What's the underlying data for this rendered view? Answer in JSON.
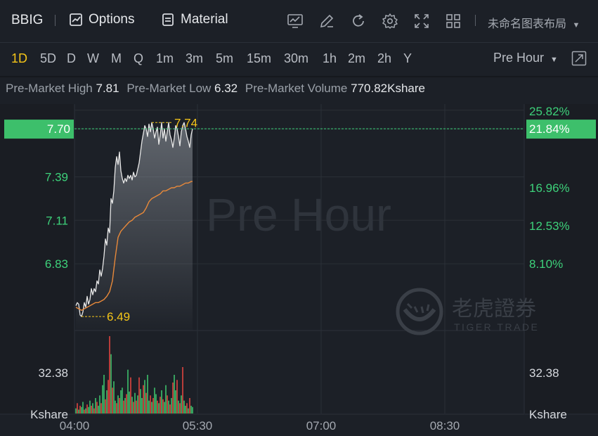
{
  "toolbar": {
    "symbol": "BBIG",
    "options_label": "Options",
    "material_label": "Material",
    "layout_name": "未命名图表布局"
  },
  "periods": [
    "1D",
    "5D",
    "D",
    "W",
    "M",
    "Q",
    "1m",
    "3m",
    "5m",
    "15m",
    "30m",
    "1h",
    "2m",
    "2h",
    "Y"
  ],
  "active_period": "1D",
  "session_label": "Pre Hour",
  "info": {
    "high_label": "Pre-Market High",
    "high_value": "7.81",
    "low_label": "Pre-Market Low",
    "low_value": "6.32",
    "volume_label": "Pre-Market Volume",
    "volume_value": "770.82Kshare"
  },
  "watermark": {
    "session": "Pre Hour",
    "brand_cn": "老虎證券",
    "brand_en": "TIGER TRADE"
  },
  "chart_data": {
    "type": "line",
    "title": "",
    "x_ticks": [
      "04:00",
      "05:30",
      "07:00",
      "08:30"
    ],
    "price_axis": {
      "ylim": [
        6.4,
        7.85
      ],
      "ticks": [
        "7.70",
        "7.39",
        "7.11",
        "6.83"
      ]
    },
    "pct_axis": {
      "ticks": [
        "25.82%",
        "21.84%",
        "16.96%",
        "12.53%",
        "8.10%"
      ]
    },
    "current_price": "7.70",
    "current_pct": "21.84%",
    "high_marker": "7.74",
    "low_marker": "6.49",
    "volume_axis": {
      "ticks_left": [
        "32.38",
        "Kshare"
      ],
      "ticks_right": [
        "32.38",
        "Kshare"
      ],
      "max": 60
    },
    "series": [
      {
        "key": "price",
        "color": "#e8e8e8",
        "x": [
          0,
          1,
          2,
          3,
          4,
          5,
          6,
          7,
          8,
          9,
          10,
          11,
          12,
          13,
          14,
          15,
          16,
          17,
          18,
          19,
          20,
          21,
          22,
          23,
          24,
          25,
          26,
          27,
          28,
          29,
          30,
          31,
          32,
          33,
          34,
          35,
          36,
          37,
          38,
          39,
          40,
          41,
          42,
          43,
          44,
          45,
          46,
          47,
          48,
          49,
          50,
          51,
          52,
          53,
          54,
          55,
          56,
          57,
          58,
          59,
          60,
          61,
          62,
          63,
          64,
          65,
          66,
          67,
          68,
          69,
          70,
          71,
          72,
          73,
          74,
          75,
          76,
          77,
          78,
          79,
          80,
          81,
          82,
          83
        ],
        "values": [
          6.56,
          6.58,
          6.57,
          6.5,
          6.49,
          6.52,
          6.58,
          6.55,
          6.62,
          6.57,
          6.6,
          6.67,
          6.63,
          6.67,
          6.65,
          6.72,
          6.7,
          6.79,
          6.75,
          6.8,
          6.88,
          6.99,
          6.95,
          7.06,
          7.03,
          7.25,
          7.22,
          7.3,
          7.45,
          7.52,
          7.47,
          7.55,
          7.43,
          7.38,
          7.35,
          7.38,
          7.36,
          7.4,
          7.38,
          7.4,
          7.37,
          7.42,
          7.39,
          7.4,
          7.44,
          7.48,
          7.55,
          7.62,
          7.67,
          7.72,
          7.7,
          7.65,
          7.73,
          7.68,
          7.74,
          7.7,
          7.64,
          7.68,
          7.71,
          7.6,
          7.66,
          7.74,
          7.64,
          7.7,
          7.62,
          7.68,
          7.74,
          7.66,
          7.63,
          7.58,
          7.64,
          7.72,
          7.7,
          7.65,
          7.59,
          7.68,
          7.72,
          7.74,
          7.7,
          7.65,
          7.62,
          7.58,
          7.66,
          7.7
        ]
      },
      {
        "key": "avg",
        "color": "#e8893a",
        "x": [
          0,
          2,
          4,
          6,
          8,
          10,
          12,
          14,
          16,
          18,
          20,
          22,
          24,
          26,
          28,
          30,
          32,
          34,
          36,
          38,
          40,
          42,
          44,
          46,
          48,
          50,
          52,
          54,
          56,
          58,
          60,
          62,
          64,
          66,
          68,
          70,
          72,
          74,
          76,
          78,
          80,
          82,
          83
        ],
        "values": [
          6.55,
          6.54,
          6.53,
          6.54,
          6.55,
          6.56,
          6.57,
          6.58,
          6.58,
          6.59,
          6.6,
          6.62,
          6.65,
          6.72,
          6.87,
          7.0,
          7.04,
          7.06,
          7.08,
          7.1,
          7.11,
          7.13,
          7.14,
          7.15,
          7.16,
          7.19,
          7.23,
          7.25,
          7.26,
          7.27,
          7.28,
          7.3,
          7.3,
          7.31,
          7.32,
          7.32,
          7.33,
          7.33,
          7.34,
          7.35,
          7.35,
          7.36,
          7.36
        ]
      }
    ],
    "volume": [
      4,
      8,
      3,
      6,
      5,
      9,
      3,
      4,
      7,
      5,
      10,
      6,
      8,
      4,
      12,
      9,
      6,
      14,
      8,
      22,
      30,
      11,
      18,
      26,
      60,
      46,
      20,
      25,
      10,
      8,
      14,
      12,
      18,
      20,
      10,
      12,
      15,
      34,
      17,
      28,
      13,
      9,
      16,
      10,
      14,
      28,
      19,
      12,
      22,
      26,
      16,
      30,
      10,
      14,
      9,
      12,
      20,
      15,
      10,
      8,
      13,
      18,
      11,
      9,
      22,
      14,
      10,
      7,
      12,
      24,
      30,
      18,
      26,
      10,
      8,
      14,
      36,
      10,
      6,
      8,
      4,
      12,
      6,
      5
    ],
    "volume_colors": [
      "g",
      "r",
      "g",
      "r",
      "g",
      "g",
      "r",
      "g",
      "r",
      "g",
      "g",
      "r",
      "g",
      "r",
      "g",
      "r",
      "g",
      "g",
      "r",
      "g",
      "g",
      "r",
      "g",
      "r",
      "r",
      "g",
      "r",
      "g",
      "g",
      "r",
      "g",
      "r",
      "g",
      "g",
      "r",
      "g",
      "r",
      "g",
      "g",
      "r",
      "g",
      "r",
      "g",
      "r",
      "g",
      "r",
      "g",
      "g",
      "r",
      "g",
      "r",
      "g",
      "g",
      "r",
      "g",
      "r",
      "g",
      "g",
      "r",
      "g",
      "r",
      "g",
      "r",
      "g",
      "g",
      "r",
      "g",
      "r",
      "g",
      "r",
      "g",
      "g",
      "r",
      "g",
      "r",
      "g",
      "r",
      "g",
      "g",
      "r",
      "g",
      "r",
      "g",
      "g"
    ]
  }
}
